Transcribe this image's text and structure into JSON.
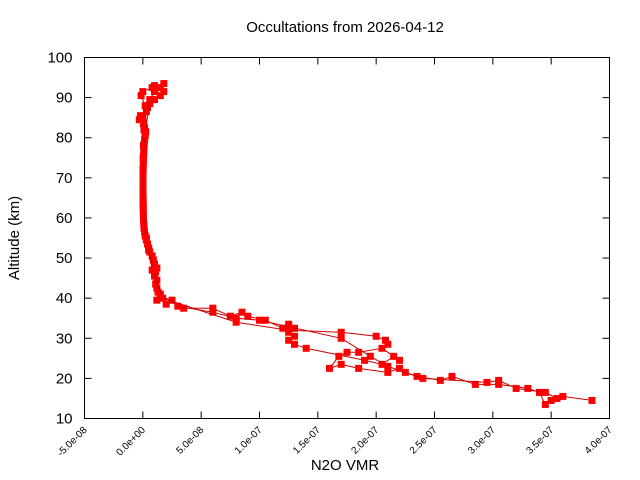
{
  "chart_data": {
    "type": "line",
    "title": "Occultations from 2026-04-12",
    "xlabel": "N2O VMR",
    "ylabel": "Altitude (km)",
    "xlim": [
      -5e-08,
      4e-07
    ],
    "ylim": [
      10,
      100
    ],
    "xticks": [
      "-5.0e-08",
      "0.0e+00",
      "5.0e-08",
      "1.0e-07",
      "1.5e-07",
      "2.0e-07",
      "2.5e-07",
      "3.0e-07",
      "3.5e-07",
      "4.0e-07"
    ],
    "yticks": [
      "10",
      "20",
      "30",
      "40",
      "50",
      "60",
      "70",
      "80",
      "90",
      "100"
    ],
    "grid": false,
    "marker_color": "#ff0000",
    "line_color": "#cc0000",
    "series": [
      {
        "points": [
          [
            3.85e-07,
            14.5
          ],
          [
            3.6e-07,
            15.5
          ],
          [
            3.5e-07,
            14.5
          ],
          [
            3.45e-07,
            13.5
          ],
          [
            3.4e-07,
            16.5
          ],
          [
            3.3e-07,
            17.5
          ],
          [
            3.05e-07,
            18.5
          ],
          [
            2.85e-07,
            18.5
          ],
          [
            2.65e-07,
            20.5
          ],
          [
            2.55e-07,
            19.5
          ],
          [
            2.35e-07,
            20.5
          ],
          [
            2.25e-07,
            21.5
          ],
          [
            2.2e-07,
            22.5
          ],
          [
            2.1e-07,
            21.5
          ],
          [
            1.85e-07,
            22.5
          ],
          [
            1.7e-07,
            23.5
          ],
          [
            1.6e-07,
            22.5
          ],
          [
            1.68e-07,
            25.5
          ],
          [
            1.75e-07,
            26.5
          ],
          [
            1.85e-07,
            26.5
          ],
          [
            2.05e-07,
            27.5
          ],
          [
            2.2e-07,
            24.5
          ],
          [
            2.15e-07,
            25.5
          ],
          [
            2.05e-07,
            23.5
          ],
          [
            1.9e-07,
            24.5
          ],
          [
            1.4e-07,
            27.5
          ],
          [
            1.3e-07,
            28.5
          ],
          [
            1.25e-07,
            29.5
          ],
          [
            1.3e-07,
            30.5
          ],
          [
            1.25e-07,
            31.5
          ],
          [
            1.3e-07,
            32.5
          ],
          [
            1.25e-07,
            33.5
          ],
          [
            1.2e-07,
            32.5
          ],
          [
            1.05e-07,
            34.5
          ],
          [
            9e-08,
            35.5
          ],
          [
            8.5e-08,
            36.5
          ],
          [
            7.5e-08,
            35.5
          ],
          [
            6e-08,
            37.5
          ],
          [
            3.5e-08,
            37.5
          ],
          [
            2.5e-08,
            39.5
          ],
          [
            2e-08,
            38.5
          ],
          [
            1.5e-08,
            40.5
          ],
          [
            1.2e-08,
            39.5
          ],
          [
            1.3e-08,
            41.5
          ],
          [
            1.2e-08,
            42.5
          ],
          [
            1.1e-08,
            43.5
          ],
          [
            1.2e-08,
            44.5
          ],
          [
            1e-08,
            45.5
          ],
          [
            1.1e-08,
            46.5
          ],
          [
            1.2e-08,
            47.5
          ],
          [
            1e-08,
            48.5
          ],
          [
            9e-09,
            49.5
          ],
          [
            8e-09,
            50.5
          ],
          [
            6e-09,
            51.5
          ],
          [
            5e-09,
            52.5
          ],
          [
            4e-09,
            53.5
          ],
          [
            3e-09,
            54.5
          ],
          [
            2e-09,
            55.5
          ],
          [
            1.5e-09,
            56.5
          ],
          [
            1e-09,
            57.5
          ],
          [
            8e-10,
            58.5
          ],
          [
            6e-10,
            59.5
          ],
          [
            5e-10,
            60.5
          ],
          [
            4e-10,
            61.5
          ],
          [
            3e-10,
            62.5
          ],
          [
            2.5e-10,
            63.5
          ],
          [
            2e-10,
            64.5
          ],
          [
            1.8e-10,
            65.5
          ],
          [
            1.5e-10,
            66.5
          ],
          [
            1.5e-10,
            67.5
          ],
          [
            1.5e-10,
            68.5
          ],
          [
            1.5e-10,
            69.5
          ],
          [
            1.5e-10,
            70.5
          ],
          [
            2e-10,
            71.5
          ],
          [
            3e-10,
            72.5
          ],
          [
            4e-10,
            73.5
          ],
          [
            5e-10,
            74.5
          ],
          [
            6e-10,
            75.5
          ],
          [
            8e-10,
            76.5
          ],
          [
            1e-09,
            77.5
          ],
          [
            1.2e-09,
            78.5
          ],
          [
            1.5e-09,
            79.5
          ],
          [
            2e-09,
            80.5
          ],
          [
            2.5e-09,
            81.5
          ],
          [
            1.5e-09,
            82.5
          ],
          [
            5e-10,
            83.5
          ],
          [
            -3e-09,
            84.5
          ],
          [
            -2e-09,
            85.5
          ],
          [
            3e-09,
            86.5
          ],
          [
            4e-09,
            87.5
          ],
          [
            6e-09,
            88.5
          ],
          [
            1e-08,
            89.5
          ],
          [
            1.5e-08,
            90.5
          ],
          [
            1.8e-08,
            91.5
          ],
          [
            1.5e-08,
            92.5
          ],
          [
            1.8e-08,
            93.5
          ]
        ]
      },
      {
        "points": [
          [
            3.55e-07,
            15.0
          ],
          [
            3.45e-07,
            16.5
          ],
          [
            3.2e-07,
            17.5
          ],
          [
            3.05e-07,
            19.5
          ],
          [
            2.95e-07,
            19.0
          ],
          [
            2.4e-07,
            20.0
          ],
          [
            2.1e-07,
            23.0
          ],
          [
            1.95e-07,
            25.5
          ],
          [
            1.7e-07,
            30.0
          ],
          [
            1e-07,
            34.5
          ],
          [
            8e-08,
            35.0
          ],
          [
            6e-08,
            36.5
          ],
          [
            3e-08,
            38.0
          ],
          [
            1.5e-08,
            41.0
          ],
          [
            1e-08,
            46.0
          ],
          [
            5e-09,
            52.0
          ],
          [
            1e-09,
            58.0
          ],
          [
            2e-10,
            65.0
          ],
          [
            1e-10,
            72.0
          ],
          [
            5e-10,
            78.0
          ],
          [
            1e-09,
            82.0
          ],
          [
            0,
            85.0
          ],
          [
            2e-09,
            88.0
          ],
          [
            -1.5e-09,
            90.5
          ],
          [
            0,
            91.5
          ],
          [
            8e-09,
            92.5
          ],
          [
            1e-08,
            93.0
          ]
        ]
      },
      {
        "points": [
          [
            2.1e-07,
            28.5
          ],
          [
            2.08e-07,
            29.5
          ],
          [
            2e-07,
            30.5
          ],
          [
            1.7e-07,
            31.5
          ],
          [
            1.25e-07,
            32.0
          ],
          [
            8e-08,
            34.0
          ],
          [
            1.7e-08,
            40.0
          ],
          [
            8e-09,
            47.0
          ],
          [
            3e-09,
            55.0
          ],
          [
            3e-10,
            63.0
          ],
          [
            3e-10,
            75.0
          ],
          [
            2e-09,
            81.0
          ],
          [
            6e-09,
            89.5
          ],
          [
            1e-08,
            91.5
          ]
        ]
      }
    ]
  }
}
